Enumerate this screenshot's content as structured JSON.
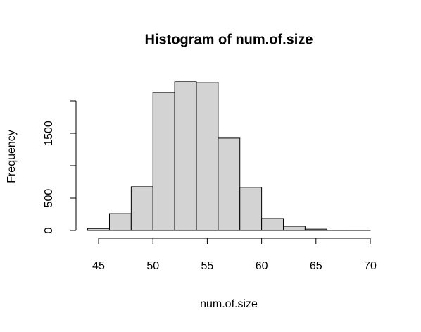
{
  "chart_data": {
    "type": "histogram",
    "title": "Histogram of num.of.size",
    "xlabel": "num.of.size",
    "ylabel": "Frequency",
    "bins": [
      44,
      46,
      48,
      50,
      52,
      54,
      56,
      58,
      60,
      62,
      64,
      66,
      68,
      70
    ],
    "counts": [
      30,
      260,
      675,
      2130,
      2295,
      2285,
      1425,
      665,
      185,
      65,
      20,
      3,
      1
    ],
    "color": "#d3d3d3",
    "xlim": [
      44,
      70
    ],
    "xticks": [
      45,
      50,
      55,
      60,
      65,
      70
    ],
    "ylim": [
      0,
      2400
    ],
    "yticks": [
      0,
      500,
      {
        "value": 1000,
        "label": null
      },
      1500,
      {
        "value": 2000,
        "label": null
      }
    ]
  }
}
